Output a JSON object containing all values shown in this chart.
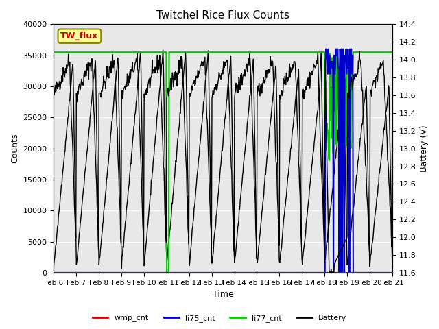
{
  "title": "Twitchel Rice Flux Counts",
  "xlabel": "Time",
  "ylabel_left": "Counts",
  "ylabel_right": "Battery (V)",
  "ylim_left": [
    0,
    40000
  ],
  "ylim_right": [
    11.6,
    14.4
  ],
  "yticks_left": [
    0,
    5000,
    10000,
    15000,
    20000,
    25000,
    30000,
    35000,
    40000
  ],
  "yticks_right": [
    11.6,
    11.8,
    12.0,
    12.2,
    12.4,
    12.6,
    12.8,
    13.0,
    13.2,
    13.4,
    13.6,
    13.8,
    14.0,
    14.2,
    14.4
  ],
  "xtick_labels": [
    "Feb 6",
    "Feb 7",
    "Feb 8",
    "Feb 9",
    "Feb 10",
    "Feb 11",
    "Feb 12",
    "Feb 13",
    "Feb 14",
    "Feb 15",
    "Feb 16",
    "Feb 17",
    "Feb 18",
    "Feb 19",
    "Feb 20",
    "Feb 21"
  ],
  "bg_color": "#e8e8e8",
  "legend_entries": [
    "wmp_cnt",
    "li75_cnt",
    "li77_cnt",
    "Battery"
  ],
  "legend_colors": [
    "#cc0000",
    "#0000cc",
    "#00cc00",
    "#000000"
  ],
  "tw_flux_label": "TW_flux",
  "tw_flux_box_color": "#ffff99",
  "tw_flux_text_color": "#cc0000"
}
